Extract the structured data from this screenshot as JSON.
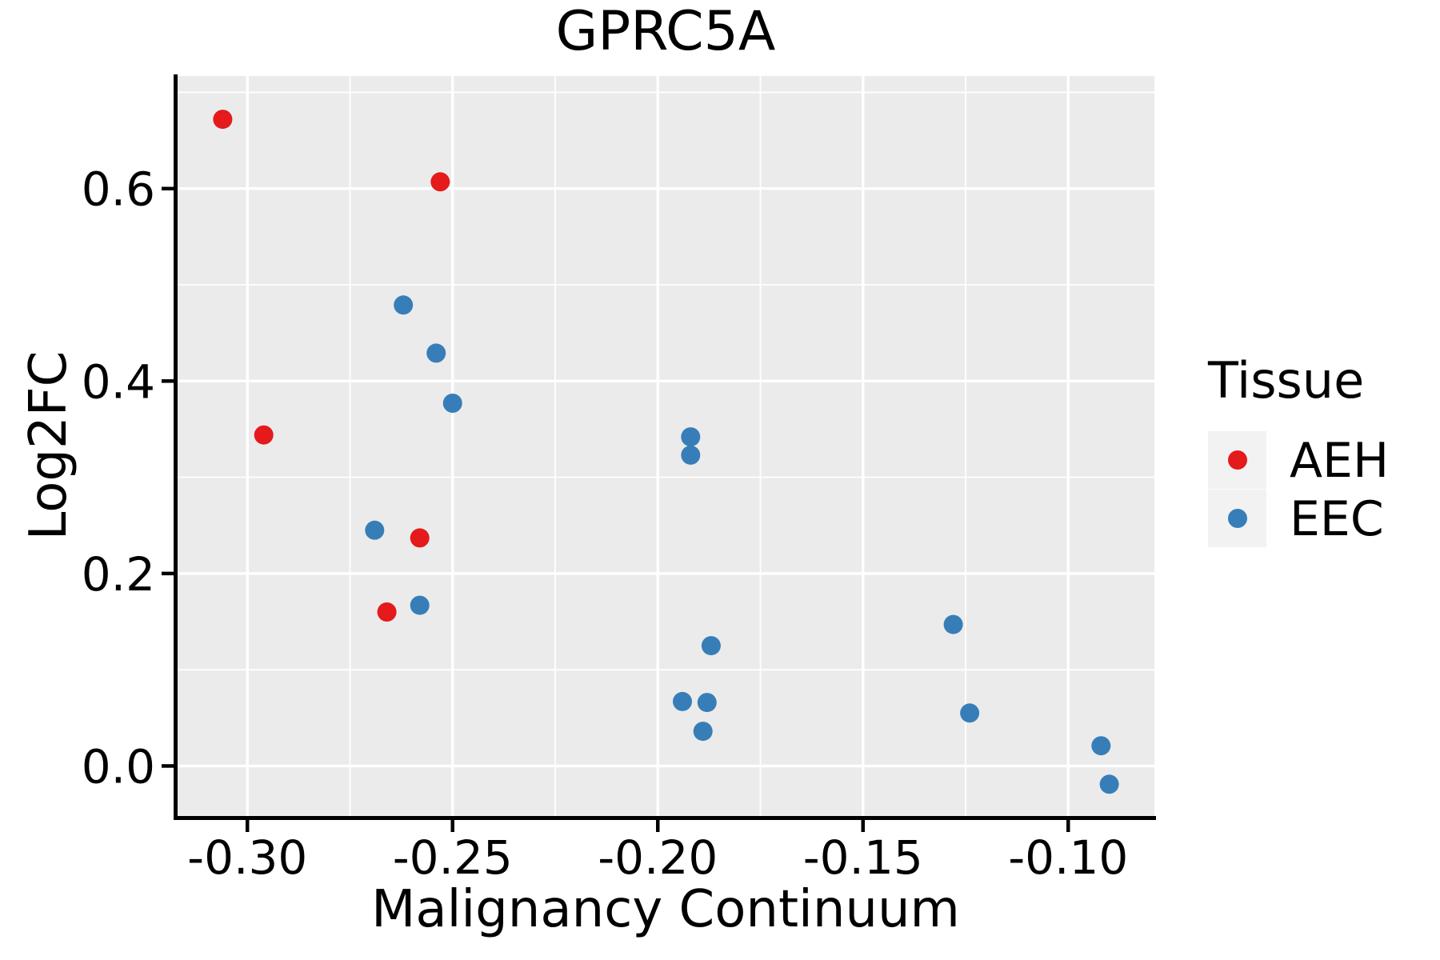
{
  "chart_data": {
    "type": "scatter",
    "title": "GPRC5A",
    "xlabel": "Malignancy Continuum",
    "ylabel": "Log2FC",
    "xlim": [
      -0.317,
      -0.079
    ],
    "ylim": [
      -0.052,
      0.717
    ],
    "x_ticks": {
      "values": [
        -0.3,
        -0.25,
        -0.2,
        -0.15,
        -0.1
      ],
      "labels": [
        "-0.30",
        "-0.25",
        "-0.20",
        "-0.15",
        "-0.10"
      ],
      "minor": [
        -0.275,
        -0.225,
        -0.175,
        -0.125
      ]
    },
    "y_ticks": {
      "values": [
        0.0,
        0.2,
        0.4,
        0.6
      ],
      "labels": [
        "0.0",
        "0.2",
        "0.4",
        "0.6"
      ],
      "minor": [
        0.1,
        0.3,
        0.5,
        0.7
      ]
    },
    "style": {
      "panel_bg": "#EBEBEB",
      "grid_color": "#FFFFFF",
      "axis_color": "#000000",
      "legend_key_bg": "#F2F2F2"
    },
    "legend": {
      "title": "Tissue",
      "position": "right",
      "entries": [
        {
          "label": "AEH",
          "color": "#E41A1C"
        },
        {
          "label": "EEC",
          "color": "#377EB8"
        }
      ]
    },
    "series": [
      {
        "name": "AEH",
        "color": "#E41A1C",
        "points": [
          [
            -0.306,
            0.672
          ],
          [
            -0.253,
            0.607
          ],
          [
            -0.296,
            0.344
          ],
          [
            -0.258,
            0.237
          ],
          [
            -0.266,
            0.16
          ]
        ]
      },
      {
        "name": "EEC",
        "color": "#377EB8",
        "points": [
          [
            -0.262,
            0.479
          ],
          [
            -0.254,
            0.429
          ],
          [
            -0.25,
            0.377
          ],
          [
            -0.269,
            0.245
          ],
          [
            -0.258,
            0.167
          ],
          [
            -0.192,
            0.342
          ],
          [
            -0.192,
            0.323
          ],
          [
            -0.187,
            0.125
          ],
          [
            -0.194,
            0.067
          ],
          [
            -0.188,
            0.066
          ],
          [
            -0.189,
            0.036
          ],
          [
            -0.128,
            0.147
          ],
          [
            -0.124,
            0.055
          ],
          [
            -0.092,
            0.021
          ],
          [
            -0.09,
            -0.019
          ]
        ]
      }
    ]
  }
}
